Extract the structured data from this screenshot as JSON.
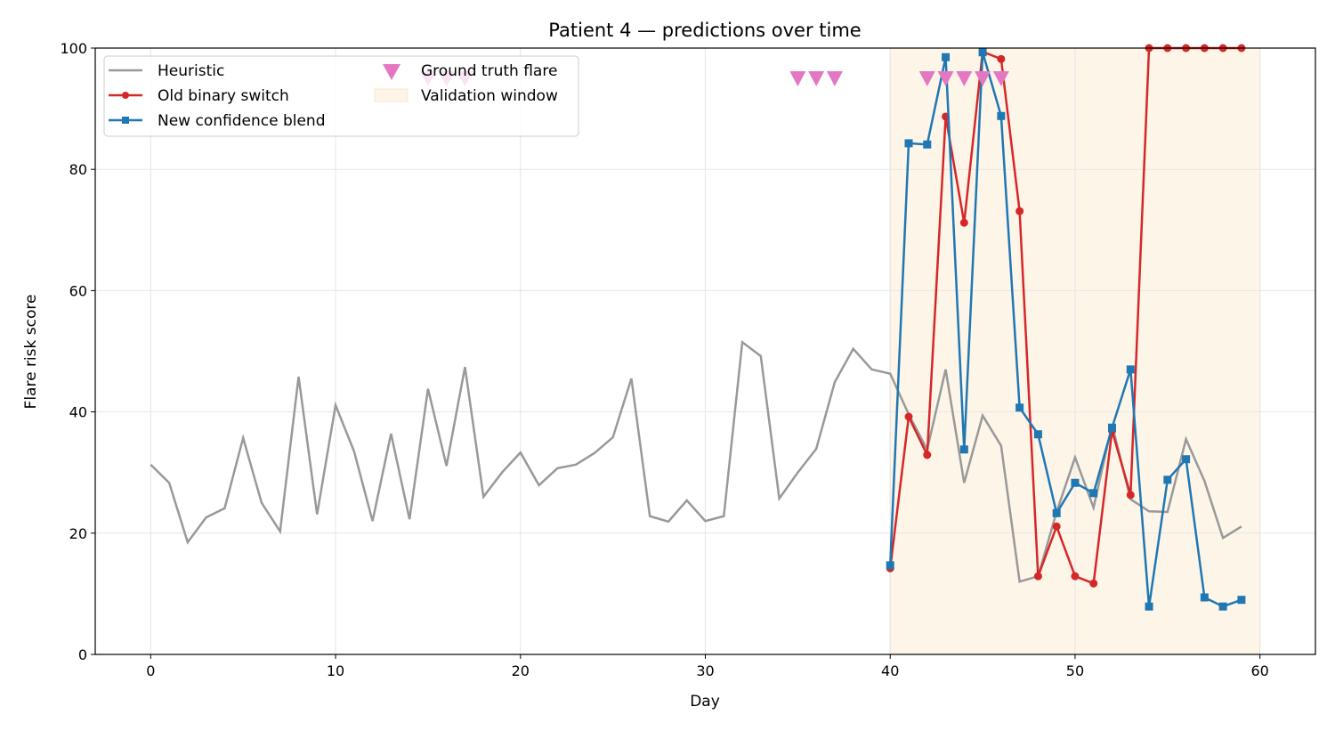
{
  "chart_data": {
    "type": "line",
    "title": "Patient 4 — predictions over time",
    "xlabel": "Day",
    "ylabel": "Flare risk score",
    "xlim": [
      -3,
      63
    ],
    "ylim": [
      0,
      100
    ],
    "xticks": [
      0,
      10,
      20,
      30,
      40,
      50,
      60
    ],
    "yticks": [
      0,
      20,
      40,
      60,
      80,
      100
    ],
    "grid": true,
    "legend_placement": "top-left",
    "series": [
      {
        "name": "Heuristic",
        "color": "#999999",
        "marker": "none",
        "x": [
          0,
          1,
          2,
          3,
          4,
          5,
          6,
          7,
          8,
          9,
          10,
          11,
          12,
          13,
          14,
          15,
          16,
          17,
          18,
          19,
          20,
          21,
          22,
          23,
          24,
          25,
          26,
          27,
          28,
          29,
          30,
          31,
          32,
          33,
          34,
          35,
          36,
          37,
          38,
          39,
          40,
          41,
          42,
          43,
          44,
          45,
          46,
          47,
          48,
          49,
          50,
          51,
          52,
          53,
          54,
          55,
          56,
          57,
          58,
          59
        ],
        "y": [
          31.3,
          28.3,
          18.5,
          22.6,
          24.1,
          35.7,
          25,
          20.3,
          45.8,
          23.1,
          41.1,
          33.5,
          22,
          36.4,
          22.3,
          43.8,
          31.1,
          47.4,
          26,
          30,
          33.3,
          27.9,
          30.7,
          31.3,
          33.2,
          35.8,
          45.5,
          22.8,
          21.9,
          25.4,
          22,
          22.8,
          51.5,
          49.2,
          25.7,
          30,
          33.9,
          44.9,
          50.4,
          47,
          46.3,
          39.6,
          33.8,
          47,
          28.3,
          39.4,
          34.4,
          12,
          12.9,
          23.5,
          32.5,
          24.2,
          37.9,
          25.6,
          23.6,
          23.5,
          35.5,
          28.6,
          19.2,
          21.1
        ]
      },
      {
        "name": "Old binary switch",
        "color": "#d62728",
        "marker": "circle",
        "x": [
          40,
          41,
          42,
          43,
          44,
          45,
          46,
          47,
          48,
          49,
          50,
          51,
          52,
          53,
          54,
          55,
          56,
          57,
          58,
          59
        ],
        "y": [
          14.2,
          39.2,
          32.9,
          88.7,
          71.2,
          99.4,
          98.2,
          73.1,
          12.9,
          21.1,
          12.9,
          11.7,
          36.9,
          26.3,
          100,
          100,
          100,
          100,
          100,
          100
        ]
      },
      {
        "name": "New confidence blend",
        "color": "#1f77b4",
        "marker": "square",
        "x": [
          40,
          41,
          42,
          43,
          44,
          45,
          46,
          47,
          48,
          49,
          50,
          51,
          52,
          53,
          54,
          55,
          56,
          57,
          58,
          59
        ],
        "y": [
          14.7,
          84.3,
          84.1,
          98.5,
          33.8,
          99.3,
          88.8,
          40.7,
          36.3,
          23.3,
          28.3,
          26.6,
          37.4,
          47,
          7.9,
          28.8,
          32.2,
          9.4,
          7.9,
          9
        ]
      }
    ],
    "ground_truth": {
      "name": "Ground truth flare",
      "color": "#e377c2",
      "marker": "triangle-down",
      "y": 95,
      "x": [
        15,
        16,
        17,
        35,
        36,
        37,
        42,
        43,
        44,
        45,
        46
      ]
    },
    "validation_window": {
      "name": "Validation window",
      "color": "#fdf5e8",
      "x": [
        40,
        60
      ]
    }
  }
}
